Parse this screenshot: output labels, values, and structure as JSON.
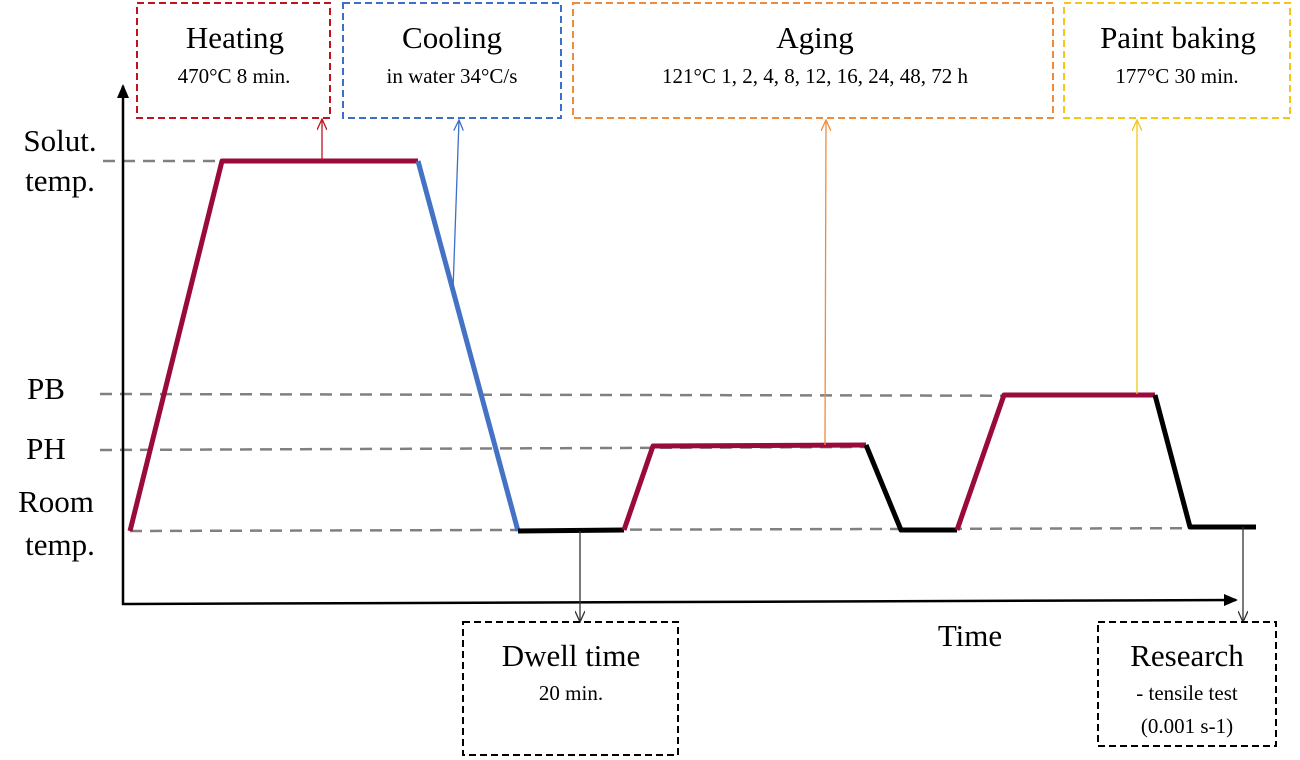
{
  "axis": {
    "x_label": "Time",
    "y_levels": [
      {
        "key": "solution",
        "lines": [
          "Solut.",
          "temp."
        ]
      },
      {
        "key": "pb",
        "lines": [
          "PB"
        ]
      },
      {
        "key": "ph",
        "lines": [
          "PH"
        ]
      },
      {
        "key": "room",
        "lines": [
          "Room",
          "temp."
        ]
      }
    ]
  },
  "stages": {
    "heating": {
      "title": "Heating",
      "detail": "470°C 8 min.",
      "color": "#c0141c"
    },
    "cooling": {
      "title": "Cooling",
      "detail": "in water 34°C/s",
      "color": "#3b6fc9"
    },
    "aging": {
      "title": "Aging",
      "detail": "121°C 1, 2, 4, 8, 12, 16, 24, 48, 72 h",
      "color": "#f08b3a"
    },
    "paint_baking": {
      "title": "Paint baking",
      "detail": "177°C 30 min.",
      "color": "#f5c518"
    },
    "dwell": {
      "title": "Dwell time",
      "detail": "20 min.",
      "color": "#000000"
    },
    "research": {
      "title": "Research",
      "detail_lines": [
        "- tensile test",
        "(0.001 s-1)"
      ],
      "color": "#000000"
    }
  },
  "colors": {
    "hot_segment": "#9b0a3c",
    "cooling_segment": "#4472c4",
    "cold_segment": "#000000",
    "guide_line": "#808080"
  }
}
